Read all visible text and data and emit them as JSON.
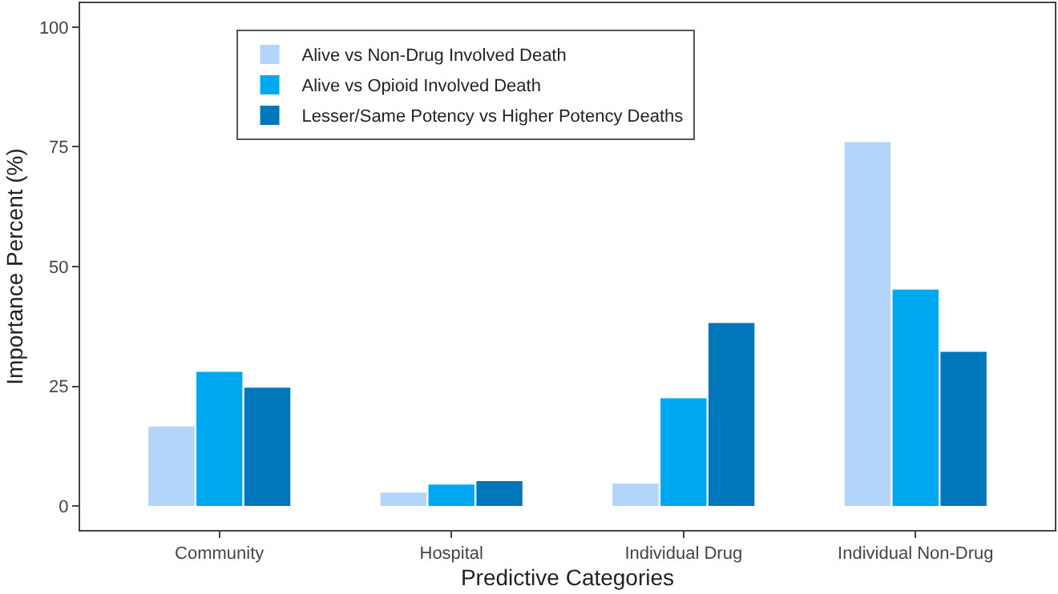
{
  "chart_data": {
    "type": "bar",
    "xlabel": "Predictive Categories",
    "ylabel": "Importance Percent (%)",
    "categories": [
      "Community",
      "Hospital",
      "Individual Drug",
      "Individual Non-Drug"
    ],
    "series": [
      {
        "name": "Alive vs Non-Drug Involved Death",
        "color": "#b3d5fa",
        "values": [
          16.6,
          2.8,
          4.7,
          76.0
        ]
      },
      {
        "name": "Alive vs Opioid Involved Death",
        "color": "#00a8f0",
        "values": [
          28.0,
          4.5,
          22.5,
          45.2
        ]
      },
      {
        "name": "Lesser/Same Potency vs Higher Potency Deaths",
        "color": "#0077bb",
        "values": [
          24.7,
          5.2,
          38.2,
          32.2
        ]
      }
    ],
    "ylim": [
      -5,
      105
    ],
    "yticks": [
      0,
      25,
      50,
      75,
      100
    ],
    "legend": "top left"
  }
}
